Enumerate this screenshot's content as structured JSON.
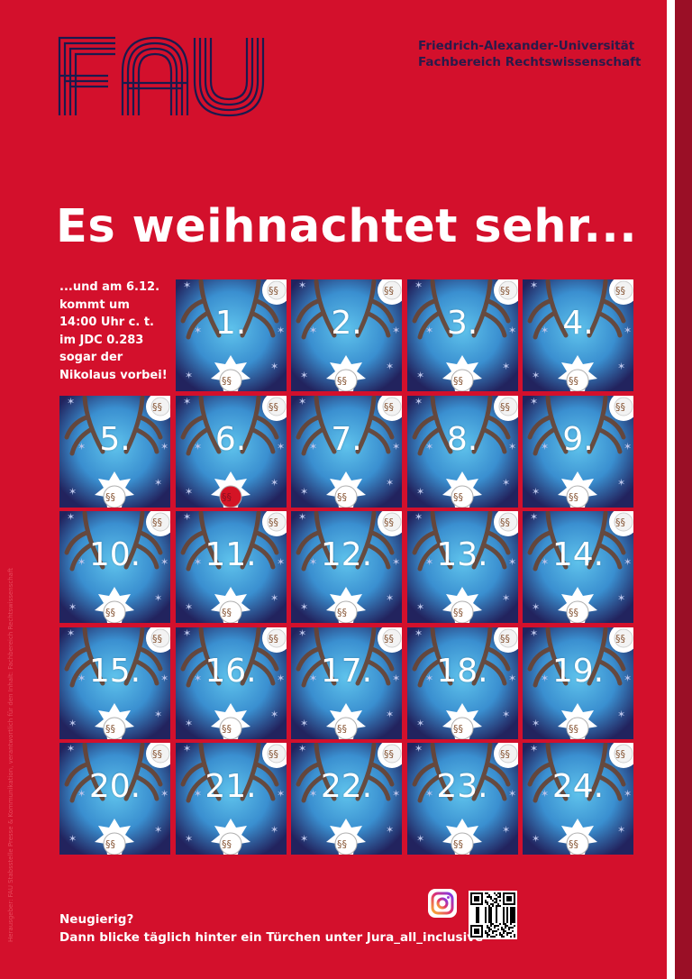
{
  "logo": {
    "text": "FAU",
    "color": "#1a1a4e"
  },
  "institution": {
    "line1": "Friedrich-Alexander-Universität",
    "line2": "Fachbereich Rechtswissenschaft"
  },
  "headline": "Es weihnachtet sehr...",
  "note": {
    "lines": [
      "...und am 6.12.",
      "kommt um",
      "14:00 Uhr c. t.",
      "im JDC 0.283",
      "sogar der",
      "Nikolaus vorbei!"
    ]
  },
  "calendar": {
    "door_symbol": "§§",
    "doors": [
      "1.",
      "2.",
      "3.",
      "4.",
      "5.",
      "6.",
      "7.",
      "8.",
      "9.",
      "10.",
      "11.",
      "12.",
      "13.",
      "14.",
      "15.",
      "16.",
      "17.",
      "18.",
      "19.",
      "20.",
      "21.",
      "22.",
      "23.",
      "24."
    ],
    "special_door": "6."
  },
  "footer": {
    "line1": "Neugierig?",
    "line2": "Dann blicke täglich hinter ein Türchen unter Jura_all_inclusive"
  },
  "side_credit": "Herausgeber: FAU Stabsstelle Presse & Kommunikation, verantwortlich für den Inhalt: Fachbereich Rechtswissenschaft",
  "icons": {
    "social": "instagram-icon",
    "code": "qr-code-icon"
  },
  "colors": {
    "background": "#d3102c",
    "door_glow": "#5fc3ec",
    "door_dark": "#22235e",
    "text": "#ffffff"
  }
}
